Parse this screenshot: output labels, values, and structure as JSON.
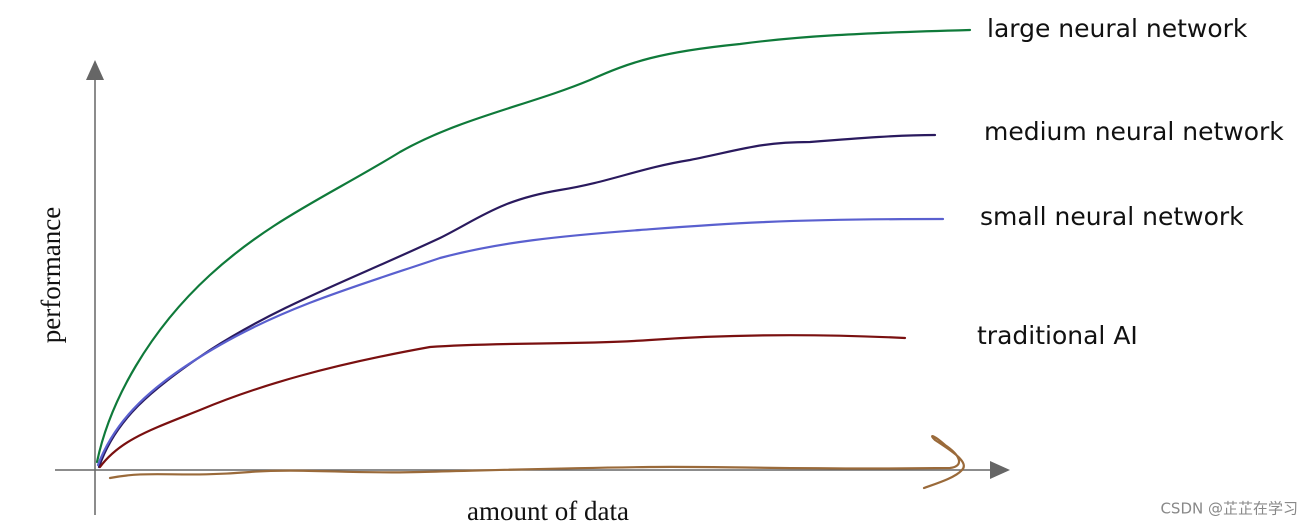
{
  "labels": {
    "large": "large neural network",
    "medium": "medium neural network",
    "small": "small neural network",
    "traditional": "traditional AI"
  },
  "axes": {
    "y": "performance",
    "x": "amount of data"
  },
  "watermark": "CSDN @芷芷在学习"
}
